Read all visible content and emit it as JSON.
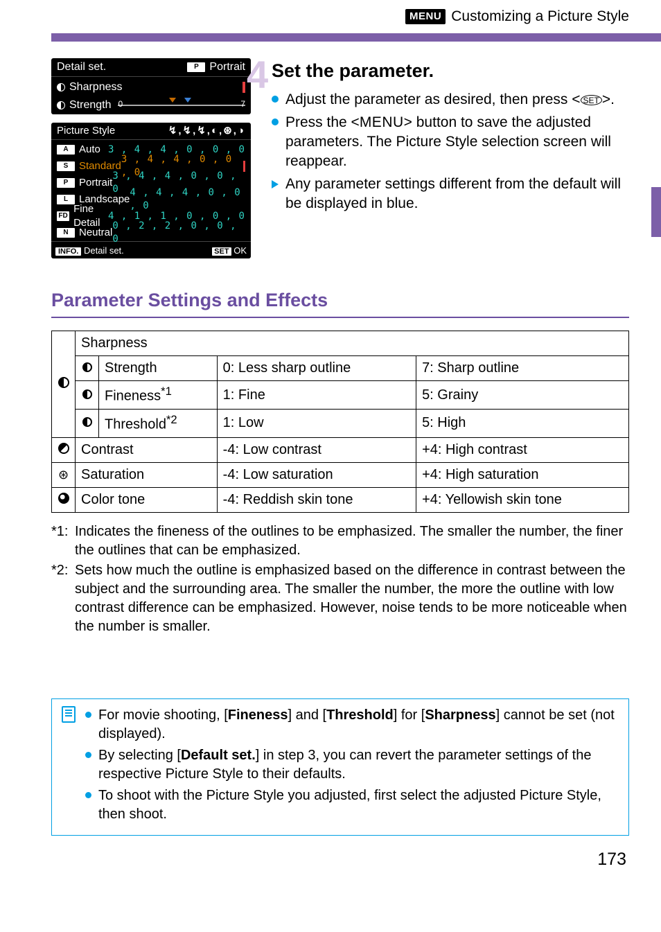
{
  "header": {
    "menu_badge": "MENU",
    "title": "Customizing a Picture Style"
  },
  "side_tab": {
    "color": "#7c5fa8"
  },
  "shot1": {
    "title_left": "Detail set.",
    "title_badge": "P",
    "title_right": "Portrait",
    "row_sharpness": "Sharpness",
    "row_strength": "Strength",
    "slider": {
      "min": "0",
      "max": "7"
    }
  },
  "shot2": {
    "header": "Picture Style",
    "header_icons": "↯,↯,↯,◐,⊛,◑",
    "rows": [
      {
        "badge": "A",
        "name": "Auto",
        "val": "3 , 4 , 4 , 0 , 0 , 0",
        "hi": false
      },
      {
        "badge": "S",
        "name": "Standard",
        "val": "3 , 4 , 4 , 0 , 0 , 0",
        "hi": true,
        "mark": true
      },
      {
        "badge": "P",
        "name": "Portrait",
        "val": "3 , 4 , 4 , 0 , 0 , 0",
        "hi": false,
        "blue": true
      },
      {
        "badge": "L",
        "name": "Landscape",
        "val": "4 , 4 , 4 , 0 , 0 , 0",
        "hi": false
      },
      {
        "badge": "FD",
        "name": "Fine Detail",
        "val": "4 , 1 , 1 , 0 , 0 , 0",
        "hi": false
      },
      {
        "badge": "N",
        "name": "Neutral",
        "val": "0 , 2 , 2 , 0 , 0 , 0",
        "hi": false
      }
    ],
    "footer_left_badge": "INFO.",
    "footer_left": "Detail set.",
    "footer_right_badge": "SET",
    "footer_right": "OK"
  },
  "step": {
    "num": "4",
    "title": "Set the parameter.",
    "b1a": "Adjust the parameter as desired, then press <",
    "b1b": ">.",
    "b2a": "Press the <",
    "b2_btn": "MENU",
    "b2b": "> button to save the adjusted parameters. The Picture Style selection screen will reappear.",
    "b3": "Any parameter settings different from the default will be displayed in blue."
  },
  "section_title": "Parameter Settings and Effects",
  "table": {
    "sharpness": "Sharpness",
    "strength": "Strength",
    "strength_lo": "0: Less sharp outline",
    "strength_hi": "7: Sharp outline",
    "fineness": "Fineness",
    "fineness_sup": "*1",
    "fineness_lo": "1: Fine",
    "fineness_hi": "5: Grainy",
    "threshold": "Threshold",
    "threshold_sup": "*2",
    "threshold_lo": "1: Low",
    "threshold_hi": "5: High",
    "contrast": "Contrast",
    "contrast_lo": "-4: Low contrast",
    "contrast_hi": "+4: High contrast",
    "saturation": "Saturation",
    "saturation_lo": "-4: Low saturation",
    "saturation_hi": "+4: High saturation",
    "colortone": "Color tone",
    "colortone_lo": "-4: Reddish skin tone",
    "colortone_hi": "+4: Yellowish skin tone"
  },
  "footnotes": {
    "f1_pre": "*1:",
    "f1": "Indicates the fineness of the outlines to be emphasized. The smaller the number, the finer the outlines that can be emphasized.",
    "f2_pre": "*2:",
    "f2": "Sets how much the outline is emphasized based on the difference in contrast between the subject and the surrounding area. The smaller the number, the more the outline with low contrast difference can be emphasized. However, noise tends to be more noticeable when the number is smaller."
  },
  "infobox": {
    "i1a": "For movie shooting, [",
    "i1b": "Fineness",
    "i1c": "] and [",
    "i1d": "Threshold",
    "i1e": "] for [",
    "i1f": "Sharpness",
    "i1g": "] cannot be set (not displayed).",
    "i2a": "By selecting [",
    "i2b": "Default set.",
    "i2c": "] in step 3, you can revert the parameter settings of the respective Picture Style to their defaults.",
    "i3": "To shoot with the Picture Style you adjusted, first select the adjusted Picture Style, then shoot."
  },
  "page_number": "173",
  "colors": {
    "accent": "#009fe3",
    "purple": "#6a4ea0"
  }
}
